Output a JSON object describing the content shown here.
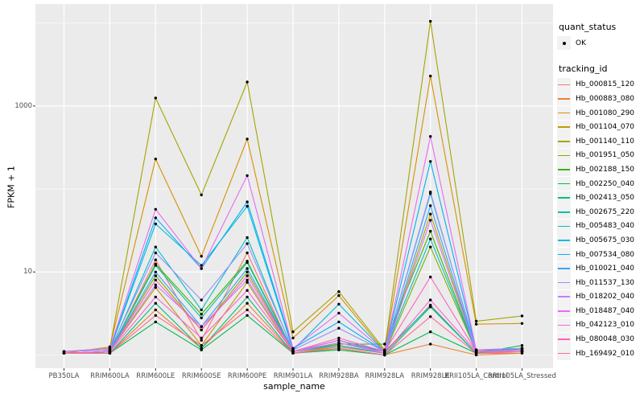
{
  "figure": {
    "background": "#FFFFFF",
    "panel_background": "#EBEBEB",
    "grid_color": "#FFFFFF",
    "tick_color": "#333333",
    "tick_label_color": "#4D4D4D",
    "legend_key_fill": "#F2F2F2",
    "point_color": "#000000"
  },
  "axes": {
    "x_label": "sample_name",
    "y_label": "FPKM + 1",
    "y_ticks": [
      {
        "label": "1000",
        "value": 1000
      },
      {
        "label": "10",
        "value": 10
      }
    ]
  },
  "legend": {
    "quant_title": "quant_status",
    "quant_items": [
      {
        "label": "OK"
      }
    ],
    "tracking_title": "tracking_id"
  },
  "chart_data": {
    "type": "line",
    "y_scale": "log10",
    "ylim": [
      1,
      10500
    ],
    "grid": {
      "major_y": [
        10,
        1000
      ],
      "minor_y": [
        1,
        100,
        10000
      ]
    },
    "legend_position": "right",
    "title": "",
    "xlabel": "sample_name",
    "ylabel": "FPKM + 1",
    "categories": [
      "PB350LA",
      "RRIM600LA",
      "RRIM600LE",
      "RRIM600SE",
      "RRIM600PE",
      "RRIM901LA",
      "RRIM928BA",
      "RRIM928LA",
      "RRIM928LE",
      "RRII105LA_Control",
      "RRII105LA_Stressed"
    ],
    "point_series_status": "OK",
    "series": [
      {
        "name": "Hb_000815_120",
        "color": "#F8766D",
        "values": [
          1.05,
          1.05,
          14,
          1.5,
          17,
          1.05,
          1.3,
          1.05,
          4.0,
          1.05,
          1.05
        ]
      },
      {
        "name": "Hb_000883_080",
        "color": "#EA8331",
        "values": [
          1.05,
          1.05,
          3.5,
          1.2,
          4.2,
          1.05,
          1.2,
          1.0,
          1.35,
          1.0,
          1.05
        ]
      },
      {
        "name": "Hb_001080_290",
        "color": "#D89000",
        "values": [
          1.05,
          1.25,
          230,
          15.5,
          400,
          1.6,
          5.2,
          1.1,
          2300,
          2.35,
          2.4
        ]
      },
      {
        "name": "Hb_001104_070",
        "color": "#C09B00",
        "values": [
          1.05,
          1.1,
          6.5,
          1.3,
          7.5,
          1.05,
          1.25,
          1.05,
          50,
          1.1,
          1.1
        ]
      },
      {
        "name": "Hb_001140_110",
        "color": "#A3A500",
        "values": [
          1.1,
          1.2,
          1250,
          85,
          1950,
          1.9,
          5.8,
          1.15,
          10500,
          2.55,
          2.95
        ]
      },
      {
        "name": "Hb_001951_050",
        "color": "#7CAE00",
        "values": [
          1.05,
          1.1,
          9,
          2.0,
          10,
          1.1,
          1.3,
          1.05,
          20,
          1.1,
          1.15
        ]
      },
      {
        "name": "Hb_002188_150",
        "color": "#39B600",
        "values": [
          1.05,
          1.1,
          12.5,
          3.1,
          13.5,
          1.1,
          1.35,
          1.35,
          31,
          1.1,
          1.2
        ]
      },
      {
        "name": "Hb_002250_040",
        "color": "#00BB4E",
        "values": [
          1.05,
          1.05,
          2.5,
          1.15,
          3.0,
          1.05,
          1.15,
          1.0,
          1.9,
          1.05,
          1.3
        ]
      },
      {
        "name": "Hb_002413_050",
        "color": "#00BF7D",
        "values": [
          1.05,
          1.05,
          4.2,
          1.2,
          5.0,
          1.05,
          1.2,
          1.0,
          3.8,
          1.05,
          1.2
        ]
      },
      {
        "name": "Hb_002675_220",
        "color": "#00C1A3",
        "values": [
          1.05,
          1.1,
          12,
          2.8,
          13,
          1.1,
          1.4,
          1.1,
          3.9,
          1.05,
          1.1
        ]
      },
      {
        "name": "Hb_005483_040",
        "color": "#00BFC4",
        "values": [
          1.05,
          1.1,
          20,
          3.5,
          26,
          1.1,
          1.5,
          1.1,
          25,
          1.1,
          1.1
        ]
      },
      {
        "name": "Hb_005675_030",
        "color": "#00BAE0",
        "values": [
          1.1,
          1.15,
          38,
          12,
          62,
          1.15,
          4.1,
          1.1,
          88,
          1.15,
          1.15
        ]
      },
      {
        "name": "Hb_007534_080",
        "color": "#00B0F6",
        "values": [
          1.1,
          1.15,
          45,
          11,
          70,
          1.2,
          2.5,
          1.1,
          215,
          1.15,
          1.2
        ]
      },
      {
        "name": "Hb_010021_040",
        "color": "#35A2FF",
        "values": [
          1.05,
          1.1,
          10,
          2.2,
          11,
          1.1,
          1.3,
          1.05,
          63,
          1.1,
          1.1
        ]
      },
      {
        "name": "Hb_011537_130",
        "color": "#9590FF",
        "values": [
          1.1,
          1.15,
          17,
          4.6,
          22,
          1.15,
          2.1,
          1.1,
          92,
          1.1,
          1.15
        ]
      },
      {
        "name": "Hb_018202_040",
        "color": "#C77CFF",
        "values": [
          1.05,
          1.1,
          7,
          2.2,
          8,
          1.1,
          1.4,
          1.05,
          42,
          1.1,
          1.1
        ]
      },
      {
        "name": "Hb_018487_040",
        "color": "#E76BF3",
        "values": [
          1.1,
          1.2,
          57,
          11,
          145,
          1.2,
          3.2,
          1.1,
          430,
          1.15,
          1.2
        ]
      },
      {
        "name": "Hb_042123_010",
        "color": "#FA62DB",
        "values": [
          1.05,
          1.1,
          5,
          1.6,
          6,
          1.1,
          1.5,
          1.05,
          4.6,
          1.1,
          1.1
        ]
      },
      {
        "name": "Hb_080048_030",
        "color": "#FF62BC",
        "values": [
          1.05,
          1.1,
          8,
          2.0,
          9,
          1.1,
          1.6,
          1.1,
          8.7,
          1.1,
          1.1
        ]
      },
      {
        "name": "Hb_169492_010",
        "color": "#FF6A98",
        "values": [
          1.05,
          1.05,
          3.0,
          1.3,
          3.5,
          1.05,
          1.2,
          1.0,
          2.9,
          1.05,
          1.1
        ]
      }
    ]
  }
}
